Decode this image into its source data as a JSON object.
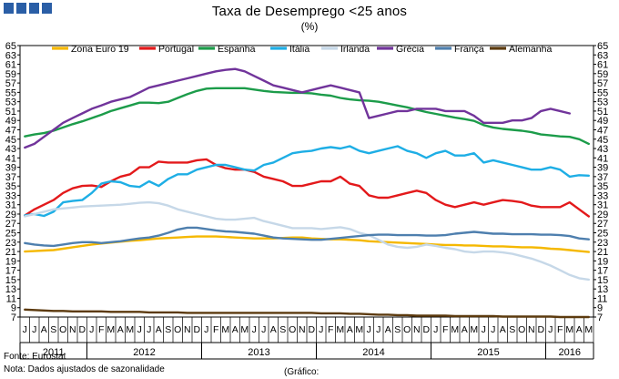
{
  "chart_data": {
    "type": "line",
    "title": "Taxa de Desemprego <25 anos",
    "subtitle": "(%)",
    "ylim": [
      7,
      65
    ],
    "yticks": [
      7,
      9,
      11,
      13,
      15,
      17,
      19,
      21,
      23,
      25,
      27,
      29,
      31,
      33,
      35,
      37,
      39,
      41,
      43,
      45,
      47,
      49,
      51,
      53,
      55,
      57,
      59,
      61,
      63,
      65
    ],
    "months": [
      "J",
      "J",
      "A",
      "S",
      "O",
      "N",
      "D",
      "J",
      "F",
      "M",
      "A",
      "M",
      "J",
      "J",
      "A",
      "S",
      "O",
      "N",
      "D",
      "J",
      "F",
      "M",
      "A",
      "M",
      "J",
      "J",
      "A",
      "S",
      "O",
      "N",
      "D",
      "J",
      "F",
      "M",
      "A",
      "M",
      "J",
      "J",
      "A",
      "S",
      "O",
      "N",
      "D",
      "J",
      "F",
      "M",
      "A",
      "M",
      "J",
      "J",
      "A",
      "S",
      "O",
      "N",
      "D",
      "J",
      "F",
      "M",
      "A",
      "M"
    ],
    "years": [
      {
        "label": "2011",
        "start": 0,
        "end": 6
      },
      {
        "label": "2012",
        "start": 7,
        "end": 18
      },
      {
        "label": "2013",
        "start": 19,
        "end": 30
      },
      {
        "label": "2014",
        "start": 31,
        "end": 42
      },
      {
        "label": "2015",
        "start": 43,
        "end": 54
      },
      {
        "label": "2016",
        "start": 55,
        "end": 59
      }
    ],
    "series": [
      {
        "name": "Zona Euro 19",
        "color": "#f5b800",
        "values": [
          21.0,
          21.1,
          21.2,
          21.3,
          21.6,
          21.9,
          22.2,
          22.5,
          22.7,
          22.9,
          23.1,
          23.3,
          23.4,
          23.6,
          23.8,
          23.9,
          24.0,
          24.1,
          24.2,
          24.2,
          24.2,
          24.1,
          24.0,
          23.9,
          23.8,
          23.8,
          23.8,
          23.9,
          24.0,
          24.0,
          23.8,
          23.7,
          23.6,
          23.6,
          23.5,
          23.4,
          23.2,
          23.1,
          23.0,
          22.9,
          22.8,
          22.7,
          22.6,
          22.5,
          22.4,
          22.4,
          22.3,
          22.3,
          22.2,
          22.1,
          22.1,
          22.0,
          21.9,
          21.9,
          21.8,
          21.6,
          21.5,
          21.3,
          21.1,
          20.9
        ]
      },
      {
        "name": "Portugal",
        "color": "#e3191b",
        "values": [
          28.7,
          30.0,
          31.0,
          32.0,
          33.5,
          34.5,
          35.0,
          35.1,
          34.8,
          36.0,
          37.0,
          37.5,
          39.0,
          39.0,
          40.2,
          40.0,
          40.0,
          40.0,
          40.5,
          40.7,
          39.5,
          38.8,
          38.5,
          38.5,
          38.0,
          37.0,
          36.5,
          36.0,
          35.0,
          35.0,
          35.5,
          36.0,
          36.0,
          37.0,
          35.5,
          35.0,
          33.0,
          32.5,
          32.5,
          33.0,
          33.5,
          34.0,
          33.5,
          32.0,
          31.0,
          30.5,
          31.0,
          31.5,
          31.0,
          31.5,
          32.0,
          31.8,
          31.5,
          30.8,
          30.5,
          30.5,
          30.5,
          31.5,
          30.0,
          28.5
        ]
      },
      {
        "name": "Espanha",
        "color": "#1c9c4a",
        "values": [
          45.6,
          46.0,
          46.3,
          46.8,
          47.5,
          48.2,
          48.8,
          49.5,
          50.2,
          51.0,
          51.6,
          52.2,
          52.8,
          52.8,
          52.7,
          53.0,
          53.8,
          54.6,
          55.3,
          55.8,
          55.9,
          55.9,
          55.9,
          55.9,
          55.6,
          55.3,
          55.1,
          55.0,
          54.9,
          54.9,
          54.8,
          54.5,
          54.3,
          53.8,
          53.5,
          53.3,
          53.2,
          53.0,
          52.6,
          52.2,
          51.8,
          51.3,
          50.8,
          50.4,
          50.0,
          49.6,
          49.3,
          48.9,
          48.0,
          47.5,
          47.2,
          47.0,
          46.8,
          46.5,
          46.0,
          45.8,
          45.6,
          45.5,
          45.0,
          44.0
        ]
      },
      {
        "name": "Itália",
        "color": "#1eaee5",
        "values": [
          28.7,
          29.0,
          28.6,
          29.5,
          31.5,
          31.8,
          32.0,
          33.5,
          35.5,
          36.0,
          35.8,
          35.0,
          34.8,
          36.0,
          35.0,
          36.5,
          37.5,
          37.5,
          38.5,
          39.0,
          39.5,
          39.5,
          39.0,
          38.5,
          38.3,
          39.5,
          40.0,
          41.0,
          42.0,
          42.3,
          42.5,
          43.0,
          43.3,
          43.0,
          43.5,
          42.5,
          42.0,
          42.5,
          43.0,
          43.5,
          42.5,
          42.0,
          41.0,
          42.0,
          42.5,
          41.5,
          41.5,
          42.0,
          40.0,
          40.5,
          40.0,
          39.5,
          39.0,
          38.5,
          38.5,
          39.0,
          38.5,
          37.0,
          37.3,
          37.2
        ]
      },
      {
        "name": "Irlanda",
        "color": "#c6d8e8",
        "values": [
          28.5,
          29.0,
          29.5,
          30.0,
          30.2,
          30.4,
          30.6,
          30.7,
          30.8,
          30.9,
          31.0,
          31.2,
          31.4,
          31.5,
          31.3,
          30.8,
          30.0,
          29.5,
          29.0,
          28.5,
          28.0,
          27.8,
          27.8,
          28.0,
          28.2,
          27.5,
          27.0,
          26.5,
          26.0,
          26.0,
          26.0,
          25.8,
          26.0,
          26.2,
          25.8,
          25.0,
          24.5,
          23.5,
          22.5,
          22.0,
          21.8,
          22.0,
          22.5,
          22.2,
          21.8,
          21.5,
          21.0,
          20.8,
          21.0,
          21.0,
          20.8,
          20.5,
          20.0,
          19.5,
          18.8,
          18.0,
          17.0,
          16.0,
          15.3,
          15.0
        ]
      },
      {
        "name": "Grécia",
        "color": "#71349b",
        "values": [
          43.2,
          44.0,
          45.5,
          47.0,
          48.5,
          49.5,
          50.5,
          51.5,
          52.2,
          53.0,
          53.5,
          54.0,
          55.0,
          56.0,
          56.5,
          57.0,
          57.5,
          58.0,
          58.5,
          59.0,
          59.5,
          59.8,
          60.0,
          59.5,
          58.5,
          57.5,
          56.5,
          56.0,
          55.5,
          55.0,
          55.5,
          56.0,
          56.5,
          56.0,
          55.5,
          55.0,
          49.5,
          50.0,
          50.5,
          51.0,
          51.0,
          51.5,
          51.5,
          51.5,
          51.0,
          51.0,
          51.0,
          50.0,
          48.5,
          48.5,
          48.5,
          49.0,
          49.0,
          49.5,
          51.0,
          51.5,
          51.0,
          50.5,
          null,
          null
        ]
      },
      {
        "name": "França",
        "color": "#4e7fae",
        "values": [
          22.8,
          22.5,
          22.3,
          22.2,
          22.5,
          22.8,
          23.0,
          23.0,
          22.8,
          23.0,
          23.2,
          23.5,
          23.8,
          24.0,
          24.4,
          25.0,
          25.7,
          26.1,
          26.1,
          25.8,
          25.5,
          25.3,
          25.2,
          25.0,
          24.8,
          24.4,
          24.0,
          23.8,
          23.7,
          23.6,
          23.5,
          23.5,
          23.7,
          23.9,
          24.1,
          24.3,
          24.5,
          24.6,
          24.6,
          24.5,
          24.5,
          24.5,
          24.4,
          24.4,
          24.5,
          24.8,
          25.0,
          25.2,
          25.0,
          24.8,
          24.8,
          24.7,
          24.7,
          24.7,
          24.6,
          24.6,
          24.5,
          24.3,
          23.8,
          23.6
        ]
      },
      {
        "name": "Alemanha",
        "color": "#5c3a0e",
        "values": [
          8.6,
          8.5,
          8.4,
          8.3,
          8.3,
          8.2,
          8.2,
          8.2,
          8.2,
          8.1,
          8.1,
          8.1,
          8.1,
          8.0,
          8.0,
          8.0,
          8.0,
          7.9,
          7.9,
          7.9,
          7.9,
          7.9,
          7.9,
          7.9,
          7.9,
          7.9,
          7.9,
          7.9,
          7.9,
          7.9,
          7.9,
          7.8,
          7.8,
          7.8,
          7.7,
          7.7,
          7.6,
          7.5,
          7.5,
          7.4,
          7.4,
          7.3,
          7.3,
          7.3,
          7.3,
          7.2,
          7.2,
          7.2,
          7.2,
          7.2,
          7.1,
          7.1,
          7.1,
          7.1,
          7.1,
          7.1,
          7.0,
          7.0,
          7.0,
          7.0
        ]
      }
    ]
  },
  "footer": {
    "source": "Fonte: Eurostat",
    "note": "Nota: Dados ajustados de sazonalidade",
    "graphic": "(Gráfico:"
  }
}
